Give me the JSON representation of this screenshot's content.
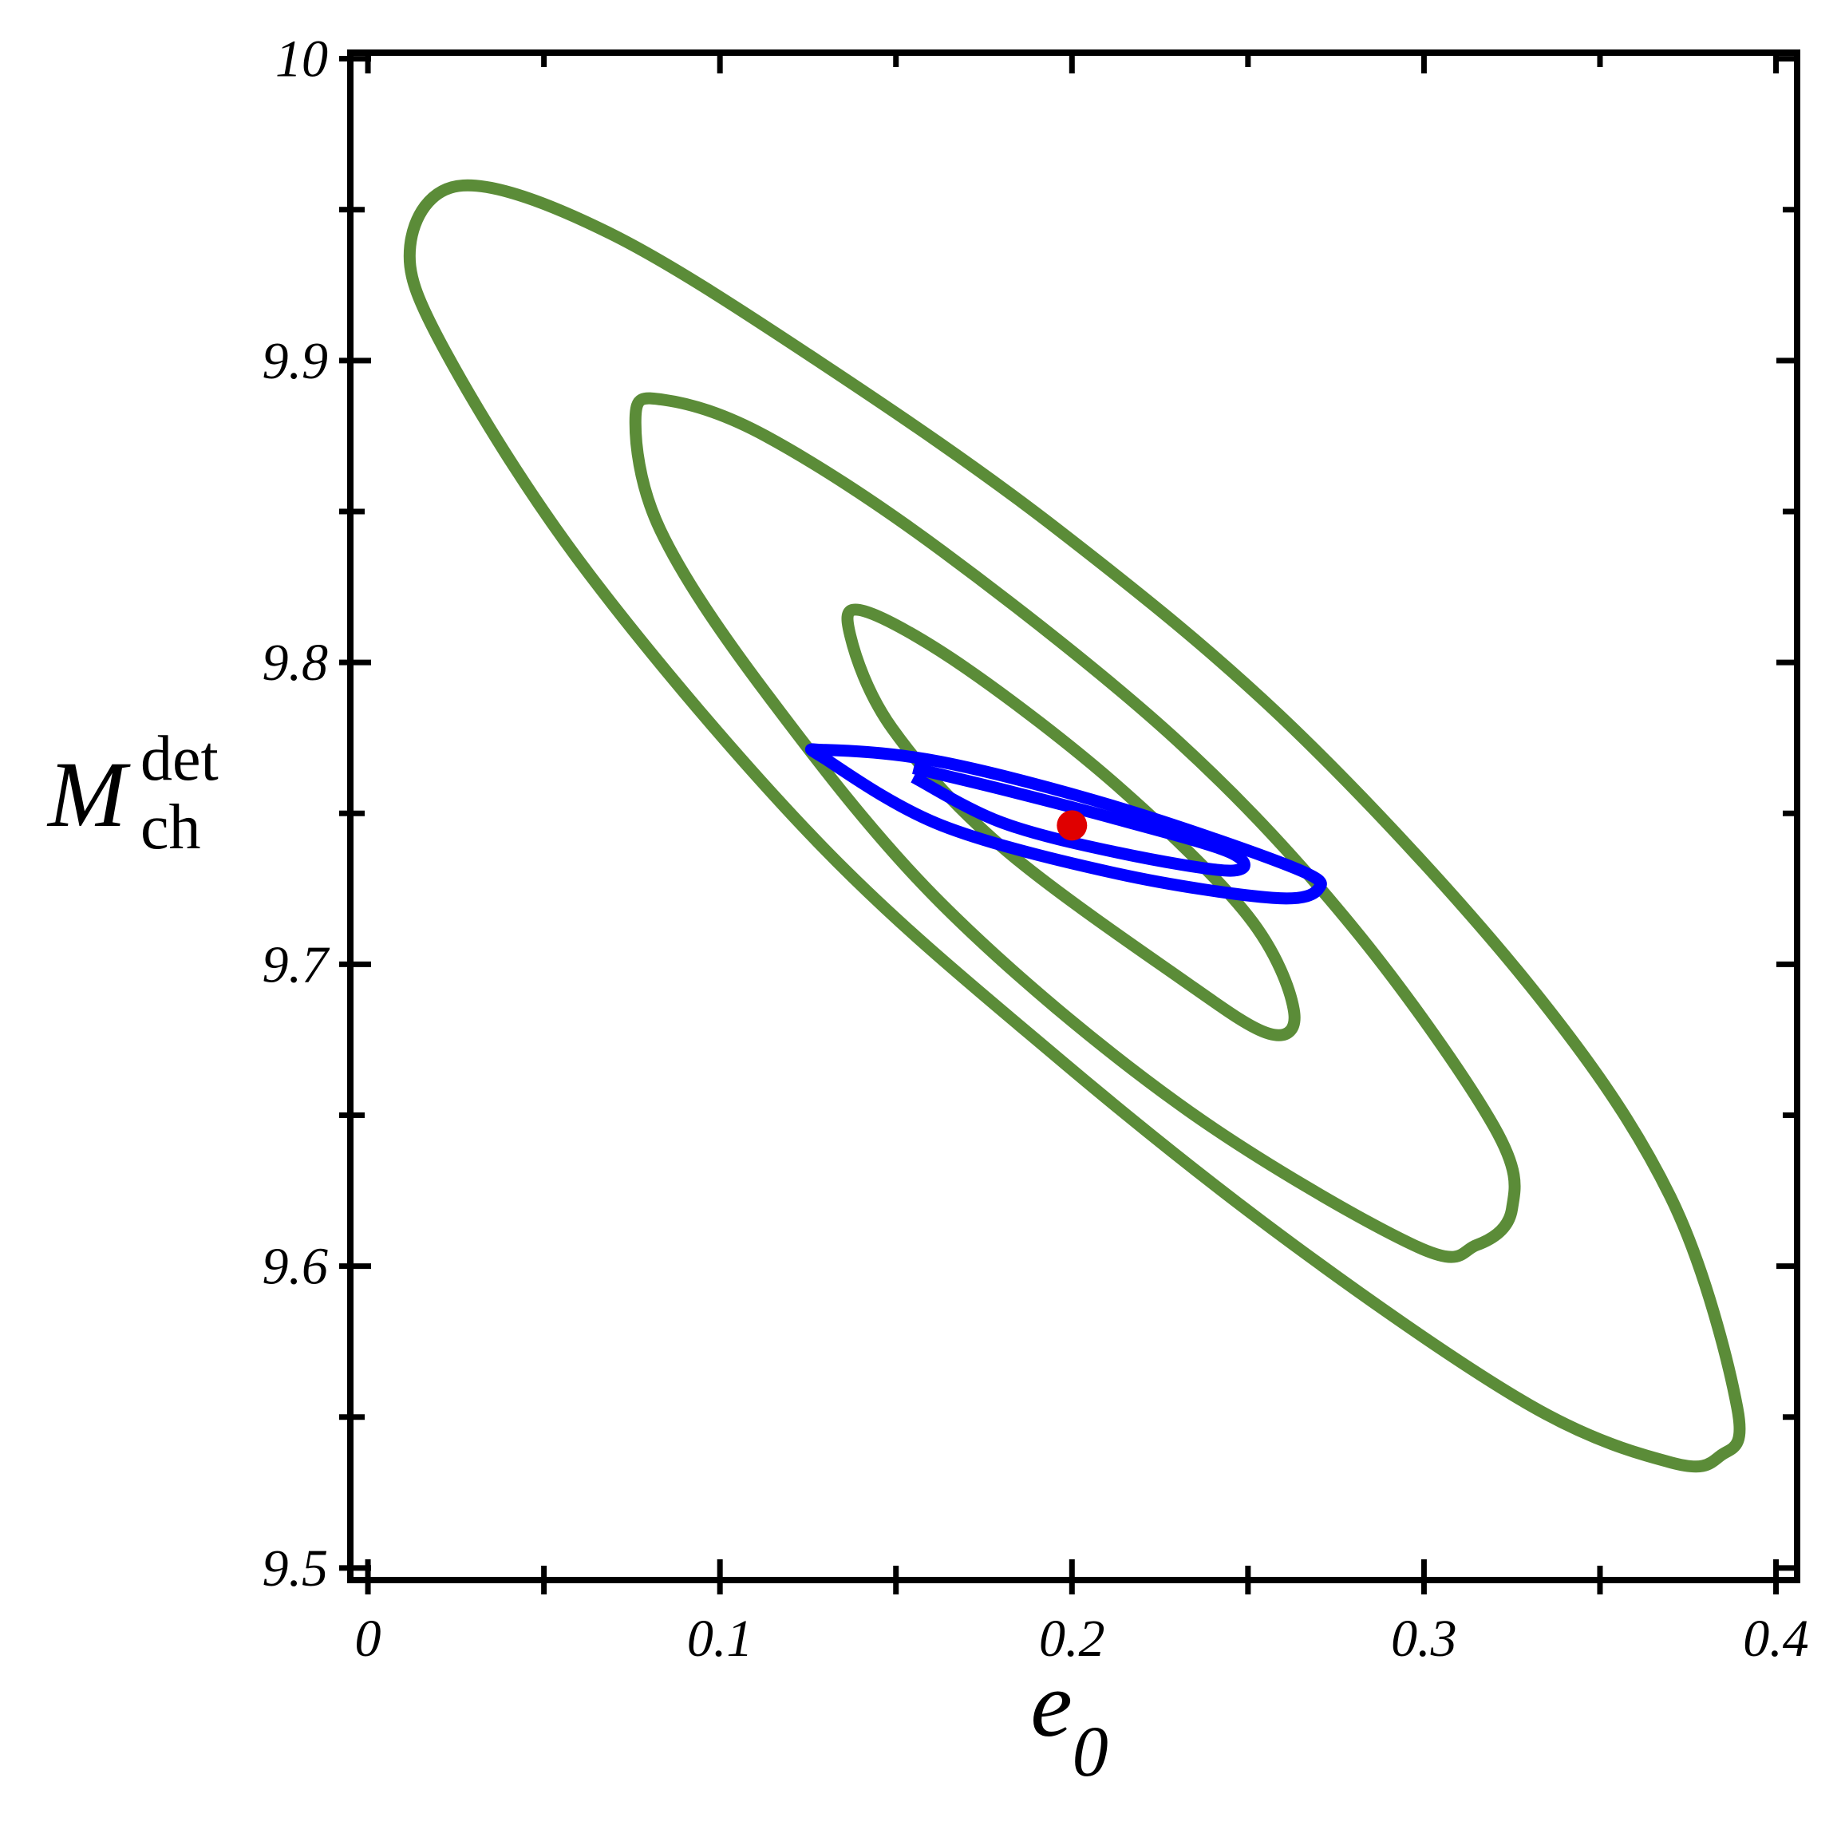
{
  "chart_data": {
    "type": "contour",
    "xlabel": {
      "base": "e",
      "sub": "0"
    },
    "ylabel": {
      "base": "M",
      "sub": "ch",
      "sup": "det"
    },
    "xlim": [
      -0.005,
      0.406
    ],
    "ylim": [
      9.496,
      10.002
    ],
    "xticks": [
      0,
      0.1,
      0.2,
      0.3,
      0.4
    ],
    "yticks": [
      9.5,
      9.6,
      9.7,
      9.8,
      9.9,
      10
    ],
    "xminor": [
      0.05,
      0.15,
      0.25,
      0.35
    ],
    "yminor": [
      9.55,
      9.65,
      9.75,
      9.85,
      9.95
    ],
    "series": [
      {
        "color": "#5b8c38",
        "closed": true,
        "x": [
          0.027,
          0.069,
          0.129,
          0.196,
          0.263,
          0.33,
          0.37,
          0.389,
          0.384,
          0.37,
          0.33,
          0.263,
          0.196,
          0.129,
          0.063,
          0.022,
          0.012
        ],
        "y": [
          9.958,
          9.942,
          9.899,
          9.844,
          9.778,
          9.693,
          9.623,
          9.553,
          9.537,
          9.535,
          9.554,
          9.607,
          9.669,
          9.739,
          9.829,
          9.903,
          9.938
        ]
      },
      {
        "color": "#5b8c38",
        "closed": true,
        "x": [
          0.084,
          0.113,
          0.163,
          0.23,
          0.28,
          0.32,
          0.325,
          0.315,
          0.297,
          0.23,
          0.163,
          0.113,
          0.083,
          0.076
        ],
        "y": [
          9.887,
          9.875,
          9.837,
          9.774,
          9.712,
          9.646,
          9.619,
          9.607,
          9.607,
          9.654,
          9.72,
          9.79,
          9.844,
          9.881
        ]
      },
      {
        "color": "#5b8c38",
        "closed": true,
        "x": [
          0.141,
          0.17,
          0.213,
          0.25,
          0.263,
          0.256,
          0.23,
          0.18,
          0.149,
          0.137
        ],
        "y": [
          9.817,
          9.798,
          9.759,
          9.716,
          9.685,
          9.677,
          9.696,
          9.739,
          9.778,
          9.809
        ]
      },
      {
        "color": "#0000ff",
        "closed": true,
        "x": [
          0.13,
          0.163,
          0.213,
          0.263,
          0.27,
          0.257,
          0.213,
          0.163,
          0.13
        ],
        "y": [
          9.771,
          9.767,
          9.752,
          9.732,
          9.725,
          9.722,
          9.73,
          9.746,
          9.768
        ]
      },
      {
        "color": "#0000ff",
        "closed": false,
        "x": [
          0.155,
          0.18,
          0.213,
          0.245,
          0.245,
          0.213,
          0.18,
          0.155
        ],
        "y": [
          9.765,
          9.758,
          9.748,
          9.737,
          9.731,
          9.737,
          9.747,
          9.762
        ]
      }
    ],
    "point": {
      "x": 0.2,
      "y": 9.746,
      "color": "#e00000"
    }
  }
}
